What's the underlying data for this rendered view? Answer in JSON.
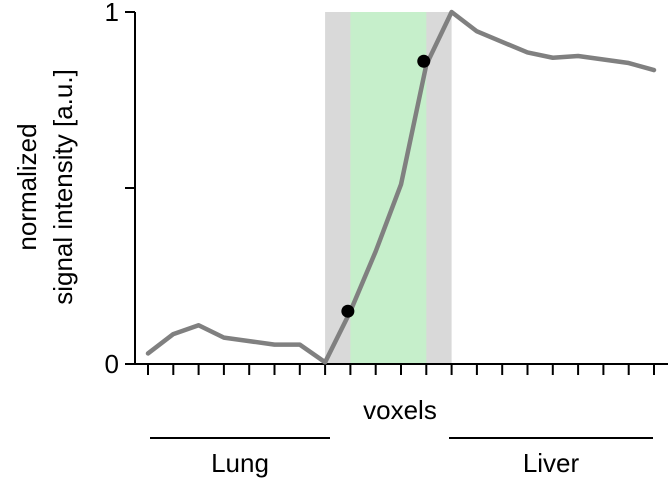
{
  "chart_data": {
    "type": "line",
    "title": "",
    "xlabel": "voxels",
    "ylabel_line1": "normalized",
    "ylabel_line2": "signal intensity [a.u.]",
    "ylim": [
      0,
      1
    ],
    "y_ticks": [
      0,
      0.5,
      1
    ],
    "y_tick_labels": [
      "0",
      "",
      "1"
    ],
    "n_voxels": 21,
    "series": [
      {
        "name": "",
        "color": "#808080",
        "x": [
          0,
          1,
          2,
          3,
          4,
          5,
          6,
          7,
          8,
          9,
          10,
          11,
          12,
          13,
          14,
          15,
          16,
          17,
          18,
          19,
          20
        ],
        "values": [
          0.03,
          0.085,
          0.11,
          0.075,
          0.065,
          0.055,
          0.055,
          0.005,
          0.15,
          0.32,
          0.51,
          0.85,
          1.0,
          0.945,
          0.915,
          0.885,
          0.87,
          0.875,
          0.865,
          0.855,
          0.835
        ]
      }
    ],
    "markers": [
      {
        "x": 7.9,
        "y": 0.15,
        "color": "#000000"
      },
      {
        "x": 10.9,
        "y": 0.86,
        "color": "#000000"
      }
    ],
    "shaded_regions": [
      {
        "x_start": 7.0,
        "x_end": 12.0,
        "color": "#d9d9d9"
      },
      {
        "x_start": 8.0,
        "x_end": 11.0,
        "color": "#c6efcb"
      }
    ],
    "groups": [
      {
        "label": "Lung",
        "x_start": 0,
        "x_end": 7
      },
      {
        "label": "Liver",
        "x_start": 12,
        "x_end": 20
      }
    ],
    "grid": false
  }
}
